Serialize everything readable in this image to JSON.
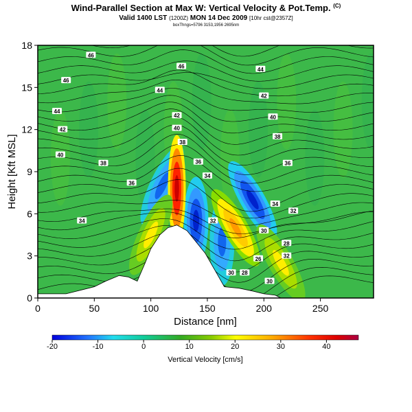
{
  "title": {
    "main": "Wind-Parallel Section at Max W: Vertical Velocity & Pot.Temp.",
    "mark": "(C)",
    "valid": "Valid 1400 LST",
    "valid_paren": "(1200Z)",
    "valid_date": "MON 14 Dec 2009",
    "run": "[10hr cst@2357Z]",
    "sub": "boxThngs=5796 3153,1956 2695nm"
  },
  "chart_data": {
    "type": "heatmap",
    "xlabel": "Distance [nm]",
    "ylabel": "Height [Kft MSL]",
    "xlim": [
      0,
      297
    ],
    "ylim": [
      0,
      18
    ],
    "xticks": [
      "0",
      "50",
      "100",
      "150",
      "200",
      "250"
    ],
    "xtick_values": [
      0,
      50,
      100,
      150,
      200,
      250
    ],
    "yticks": [
      "0",
      "3",
      "6",
      "9",
      "12",
      "15",
      "18"
    ],
    "ytick_values": [
      0,
      3,
      6,
      9,
      12,
      15,
      18
    ],
    "colorbar": {
      "label": "Vertical Velocity [cm/s]",
      "min": -20,
      "max": 47,
      "ticks": [
        "-20",
        "-10",
        "0",
        "10",
        "20",
        "30",
        "40"
      ],
      "tick_values": [
        -20,
        -10,
        0,
        10,
        20,
        30,
        40
      ]
    },
    "terrain": [
      [
        0,
        0.3
      ],
      [
        25,
        0.3
      ],
      [
        40,
        0.6
      ],
      [
        50,
        0.8
      ],
      [
        60,
        1.2
      ],
      [
        72,
        1.6
      ],
      [
        80,
        1.5
      ],
      [
        88,
        1.2
      ],
      [
        95,
        2.5
      ],
      [
        100,
        3.5
      ],
      [
        108,
        4.5
      ],
      [
        115,
        5.0
      ],
      [
        123,
        5.2
      ],
      [
        132,
        4.8
      ],
      [
        140,
        4.0
      ],
      [
        148,
        3.2
      ],
      [
        158,
        1.8
      ],
      [
        165,
        0.8
      ],
      [
        178,
        0.7
      ],
      [
        190,
        0.5
      ],
      [
        200,
        0.3
      ],
      [
        210,
        0.2
      ],
      [
        215,
        0
      ],
      [
        297,
        0
      ]
    ],
    "updrafts": [
      {
        "x": 123,
        "z": 7.8,
        "w": 45
      },
      {
        "x": 175,
        "z": 5.0,
        "w": 22
      },
      {
        "x": 100,
        "z": 4.5,
        "w": 18
      },
      {
        "x": 215,
        "z": 2.5,
        "w": 15
      }
    ],
    "downdrafts": [
      {
        "x": 190,
        "z": 7.0,
        "w": -20
      },
      {
        "x": 140,
        "z": 5.5,
        "w": -18
      },
      {
        "x": 163,
        "z": 4.0,
        "w": -15
      },
      {
        "x": 110,
        "z": 8.0,
        "w": -12
      }
    ],
    "isentrope_labels": [
      {
        "text": "46",
        "x": 47,
        "z": 17.3
      },
      {
        "text": "46",
        "x": 127,
        "z": 16.5
      },
      {
        "text": "44",
        "x": 197,
        "z": 16.3
      },
      {
        "text": "46",
        "x": 25,
        "z": 15.5
      },
      {
        "text": "44",
        "x": 108,
        "z": 14.8
      },
      {
        "text": "42",
        "x": 200,
        "z": 14.4
      },
      {
        "text": "44",
        "x": 17,
        "z": 13.3
      },
      {
        "text": "42",
        "x": 123,
        "z": 13.0
      },
      {
        "text": "40",
        "x": 208,
        "z": 12.9
      },
      {
        "text": "42",
        "x": 22,
        "z": 12.0
      },
      {
        "text": "40",
        "x": 123,
        "z": 12.1
      },
      {
        "text": "38",
        "x": 212,
        "z": 11.5
      },
      {
        "text": "40",
        "x": 20,
        "z": 10.2
      },
      {
        "text": "38",
        "x": 128,
        "z": 11.1
      },
      {
        "text": "38",
        "x": 58,
        "z": 9.6
      },
      {
        "text": "36",
        "x": 142,
        "z": 9.7
      },
      {
        "text": "36",
        "x": 221,
        "z": 9.6
      },
      {
        "text": "36",
        "x": 83,
        "z": 8.2
      },
      {
        "text": "34",
        "x": 150,
        "z": 8.7
      },
      {
        "text": "34",
        "x": 210,
        "z": 6.7
      },
      {
        "text": "32",
        "x": 226,
        "z": 6.2
      },
      {
        "text": "34",
        "x": 39,
        "z": 5.5
      },
      {
        "text": "32",
        "x": 155,
        "z": 5.5
      },
      {
        "text": "30",
        "x": 200,
        "z": 4.8
      },
      {
        "text": "28",
        "x": 220,
        "z": 3.9
      },
      {
        "text": "26",
        "x": 195,
        "z": 2.8
      },
      {
        "text": "32",
        "x": 220,
        "z": 3.0
      },
      {
        "text": "30",
        "x": 171,
        "z": 1.8
      },
      {
        "text": "28",
        "x": 183,
        "z": 1.8
      },
      {
        "text": "30",
        "x": 205,
        "z": 1.2
      }
    ]
  }
}
